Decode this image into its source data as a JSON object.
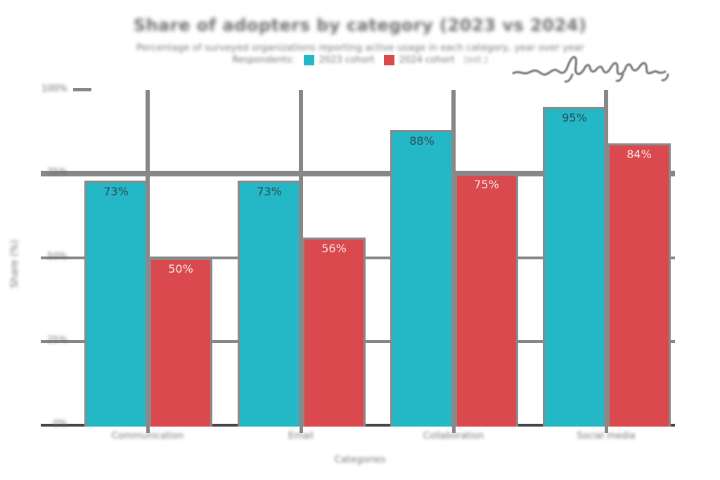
{
  "_note": "Source screenshot: title, subtitle, legend labels, axis titles and tick labels are pixelated/illegible gray blobs; placeholder strings below only reproduce the blurred visual. Bar value labels are legible and exact. A handwritten-style illegible scribble sits at top right.",
  "header": {
    "title": "Share of adopters by category (2023 vs 2024)",
    "subtitle": "Percentage of surveyed organizations reporting active usage in each category, year over year",
    "legend": {
      "prefix": "Respondents:",
      "items": [
        {
          "label": "2023 cohort",
          "color": "#24b7c6"
        },
        {
          "label": "2024 cohort",
          "color": "#d9494d"
        }
      ],
      "suffix": "(est.)"
    },
    "annotation": "handwritten scribble (illegible)"
  },
  "axes": {
    "y_title": "Share (%)",
    "x_title": "Categories"
  },
  "colors": {
    "series1": "#24b7c6",
    "series2": "#d9494d",
    "grid": "#878787",
    "baseline": "#454545",
    "muted_text": "#757575",
    "label_on_series1": "#2e4c57",
    "label_on_series2": "#f6e7e7"
  },
  "chart_data": {
    "type": "bar",
    "title": "(blurred/illegible in source)",
    "xlabel": "(blurred/illegible in source)",
    "ylabel": "(blurred/illegible in source)",
    "categories": [
      "Communication",
      "Email",
      "Collaboration",
      "Social media"
    ],
    "series": [
      {
        "name": "2023 cohort",
        "color": "#24b7c6",
        "values": [
          73,
          73,
          88,
          95
        ]
      },
      {
        "name": "2024 cohort",
        "color": "#d9494d",
        "values": [
          50,
          56,
          75,
          84
        ]
      }
    ],
    "value_labels": [
      [
        "73%",
        "73%",
        "88%",
        "95%"
      ],
      [
        "50%",
        "56%",
        "75%",
        "84%"
      ]
    ],
    "ylim": [
      0,
      100
    ],
    "yticks": [
      {
        "value": 0,
        "label": "0%"
      },
      {
        "value": 25,
        "label": "25%"
      },
      {
        "value": 50,
        "label": "50%"
      },
      {
        "value": 75,
        "label": "75%"
      },
      {
        "value": 100,
        "label": "100%"
      }
    ],
    "gridlines": [
      {
        "value": 0,
        "style": "baseline"
      },
      {
        "value": 25,
        "style": "normal"
      },
      {
        "value": 50,
        "style": "normal"
      },
      {
        "value": 75,
        "style": "thick"
      },
      {
        "value": 100,
        "style": "stub"
      }
    ],
    "vertical_guides": "one per category center, from 100% level down to baseline, drawn behind bars",
    "legend_position": "top-center",
    "grid": true
  }
}
